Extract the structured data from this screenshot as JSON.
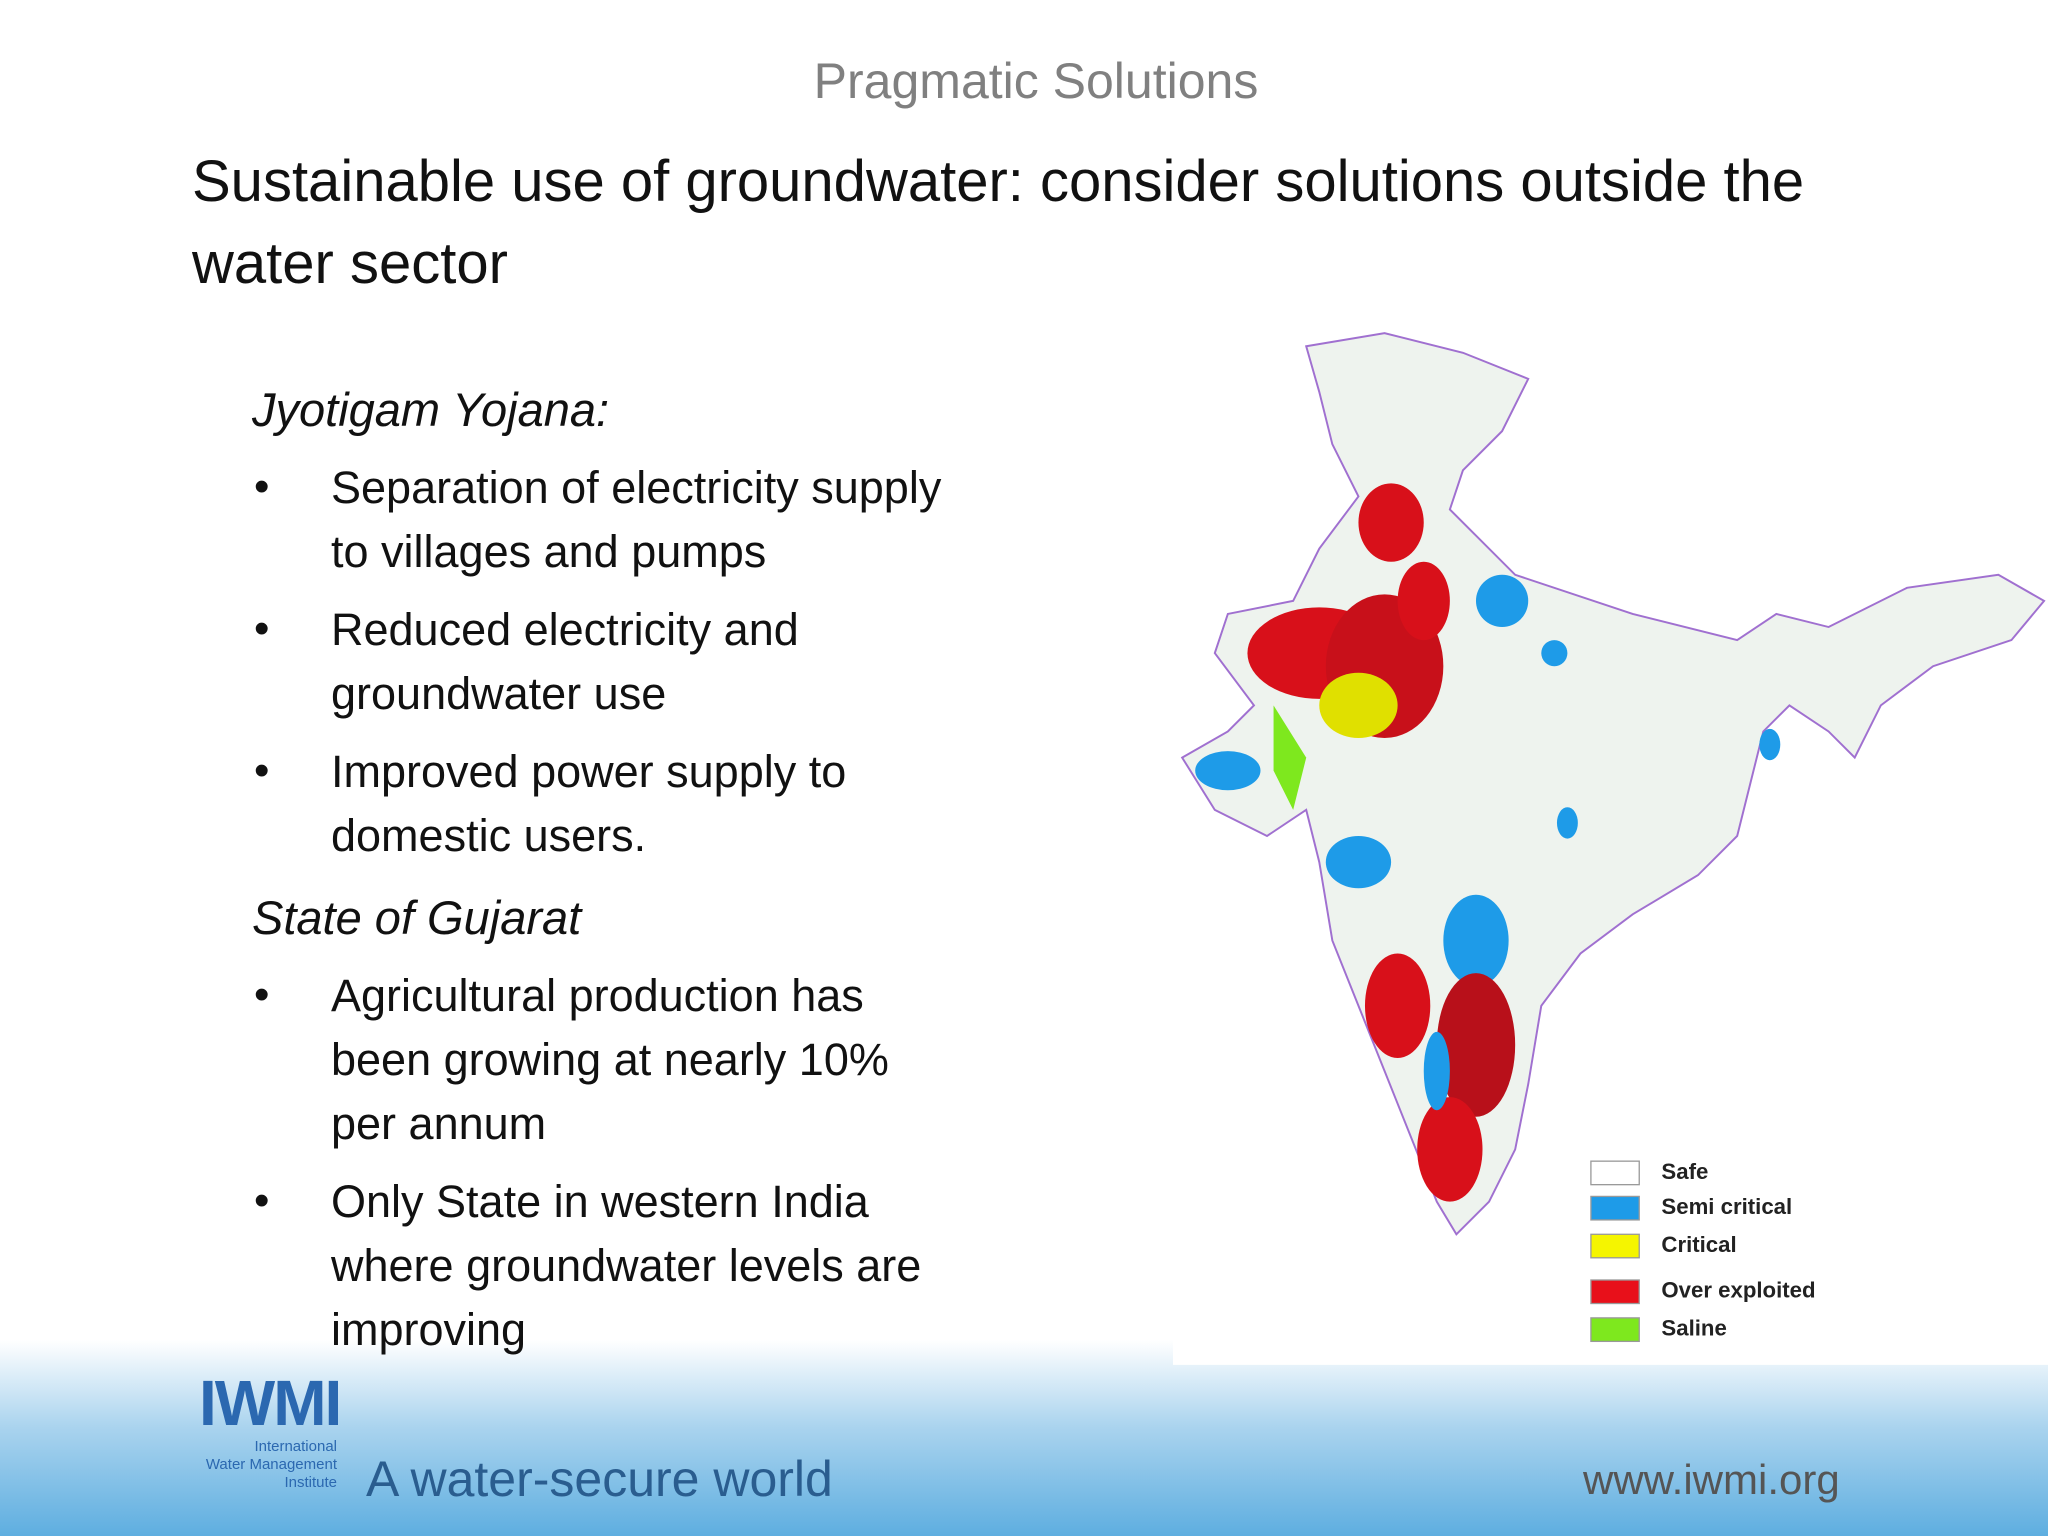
{
  "header": {
    "kicker": "Pragmatic Solutions",
    "title_lines": [
      "Sustainable use of groundwater: consider solutions outside the",
      "water sector"
    ]
  },
  "sections": [
    {
      "heading": "Jyotigam Yojana:",
      "bullets": [
        [
          "Separation of electricity supply",
          "to villages and pumps"
        ],
        [
          "Reduced electricity and",
          "groundwater use"
        ],
        [
          "Improved power supply to",
          "domestic users."
        ]
      ]
    },
    {
      "heading": "State of Gujarat",
      "bullets": [
        [
          "Agricultural production has",
          "been growing at nearly 10%",
          "per annum"
        ],
        [
          "Only State in western India",
          "where groundwater levels are",
          "improving"
        ]
      ]
    }
  ],
  "map": {
    "legend": [
      {
        "label": "Safe",
        "color": "#ffffff"
      },
      {
        "label": "Semi critical",
        "color": "#1e9be8"
      },
      {
        "label": "Critical",
        "color": "#f5f500"
      },
      {
        "label": "Over exploited",
        "color": "#e8101a"
      },
      {
        "label": "Saline",
        "color": "#7ee81e"
      }
    ]
  },
  "footer": {
    "logo": "IWMI",
    "logo_subtitle": [
      "International",
      "Water Management",
      "Institute"
    ],
    "tagline": "A water-secure world",
    "url": "www.iwmi.org"
  }
}
